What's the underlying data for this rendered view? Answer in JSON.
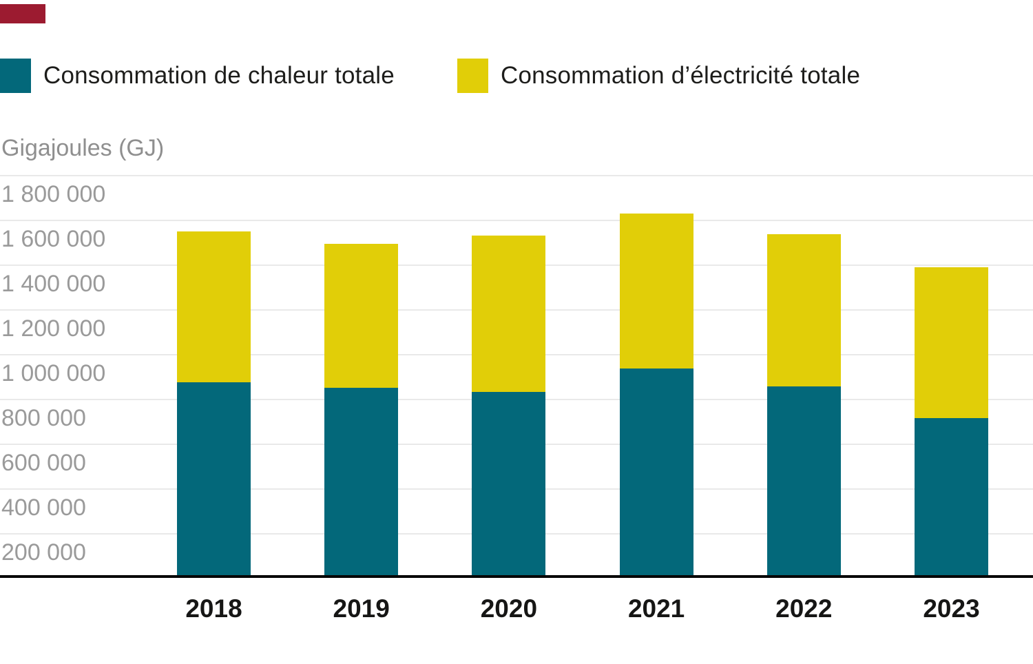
{
  "decor": {
    "accent_bar_color": "#9c1b30"
  },
  "legend": {
    "items": [
      {
        "label": "Consommation de chaleur totale",
        "color": "#03687a"
      },
      {
        "label": "Consommation d’électricité totale",
        "color": "#e1ce08"
      }
    ]
  },
  "axis": {
    "title": "Gigajoules (GJ)"
  },
  "chart_data": {
    "type": "bar",
    "stacked": true,
    "title": "",
    "ylabel": "Gigajoules (GJ)",
    "xlabel": "",
    "ylim": [
      0,
      1800000
    ],
    "grid": true,
    "legend_position": "top",
    "categories": [
      "2018",
      "2019",
      "2020",
      "2021",
      "2022",
      "2023"
    ],
    "series": [
      {
        "name": "Consommation de chaleur totale",
        "color": "#03687a",
        "values": [
          862000,
          837000,
          818000,
          923000,
          843000,
          702000
        ]
      },
      {
        "name": "Consommation d’électricité totale",
        "color": "#e1ce08",
        "values": [
          674000,
          643000,
          699000,
          692000,
          680000,
          674000
        ]
      }
    ],
    "totals": [
      1536000,
      1480000,
      1517000,
      1615000,
      1523000,
      1376000
    ],
    "yticks": [
      {
        "value": 1800000,
        "label": "1 800 000"
      },
      {
        "value": 1600000,
        "label": "1 600 000"
      },
      {
        "value": 1400000,
        "label": "1 400 000"
      },
      {
        "value": 1200000,
        "label": "1 200 000"
      },
      {
        "value": 1000000,
        "label": "1 000 000"
      },
      {
        "value": 800000,
        "label": "800 000"
      },
      {
        "value": 600000,
        "label": "600 000"
      },
      {
        "value": 400000,
        "label": "400 000"
      },
      {
        "value": 200000,
        "label": "200 000"
      }
    ]
  }
}
